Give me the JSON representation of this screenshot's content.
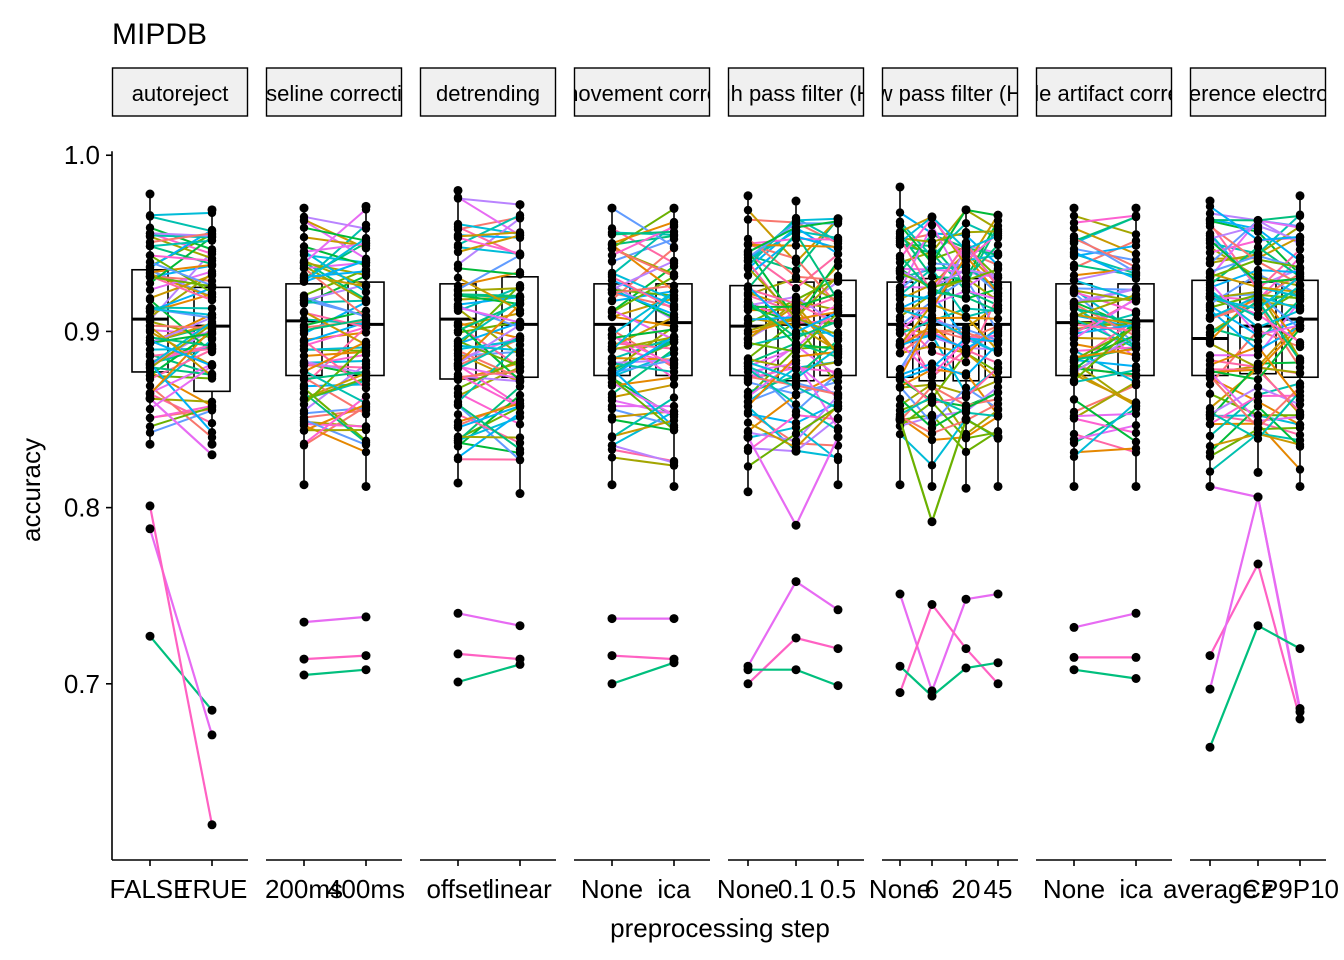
{
  "chart_data": {
    "type": "line",
    "title": "MIPDB",
    "xlabel": "preprocessing step",
    "ylabel": "accuracy",
    "ylim": [
      0.6,
      1.02
    ],
    "y_ticks": [
      0.7,
      0.8,
      0.9,
      1.0
    ],
    "y_tick_labels": [
      "0.7",
      "0.8",
      "0.9",
      "1.0"
    ],
    "grid": false,
    "legend": "none",
    "point_color": "#000000",
    "series_palette": [
      "#F8766D",
      "#E58700",
      "#C99800",
      "#A3A500",
      "#6BB100",
      "#00BA38",
      "#00BF7D",
      "#00C0AF",
      "#00BCD8",
      "#00B0F6",
      "#619CFF",
      "#B983FF",
      "#E76BF3",
      "#FD61D1",
      "#FF67A4"
    ],
    "panels": [
      {
        "strip_label": "autoreject",
        "categories": [
          "FALSE",
          "TRUE"
        ],
        "boxes": [
          {
            "q1": 0.877,
            "median": 0.907,
            "q3": 0.935,
            "whisker_low": 0.836,
            "whisker_high": 0.978
          },
          {
            "q1": 0.866,
            "median": 0.903,
            "q3": 0.925,
            "whisker_low": 0.836,
            "whisker_high": 0.969
          }
        ],
        "highlight_lines": [
          {
            "color": "#00BF7D",
            "values": [
              0.727,
              0.685
            ]
          },
          {
            "color": "#E76BF3",
            "values": [
              0.788,
              0.671
            ]
          },
          {
            "color": "#FF61C3",
            "values": [
              0.801,
              0.62
            ]
          },
          {
            "color": "#E76BF3",
            "values": [
              0.862,
              0.83
            ]
          }
        ]
      },
      {
        "strip_label": "baseline correction",
        "categories": [
          "200ms",
          "400ms"
        ],
        "boxes": [
          {
            "q1": 0.875,
            "median": 0.906,
            "q3": 0.927,
            "whisker_low": 0.813,
            "whisker_high": 0.97
          },
          {
            "q1": 0.875,
            "median": 0.904,
            "q3": 0.928,
            "whisker_low": 0.812,
            "whisker_high": 0.971
          }
        ],
        "highlight_lines": [
          {
            "color": "#E76BF3",
            "values": [
              0.735,
              0.738
            ]
          },
          {
            "color": "#FF61C3",
            "values": [
              0.714,
              0.716
            ]
          },
          {
            "color": "#00BF7D",
            "values": [
              0.705,
              0.708
            ]
          }
        ]
      },
      {
        "strip_label": "detrending",
        "categories": [
          "offset",
          "linear"
        ],
        "boxes": [
          {
            "q1": 0.873,
            "median": 0.907,
            "q3": 0.927,
            "whisker_low": 0.814,
            "whisker_high": 0.98
          },
          {
            "q1": 0.874,
            "median": 0.904,
            "q3": 0.931,
            "whisker_low": 0.808,
            "whisker_high": 0.972
          }
        ],
        "highlight_lines": [
          {
            "color": "#E76BF3",
            "values": [
              0.74,
              0.733
            ]
          },
          {
            "color": "#FF61C3",
            "values": [
              0.717,
              0.714
            ]
          },
          {
            "color": "#00BF7D",
            "values": [
              0.701,
              0.711
            ]
          }
        ]
      },
      {
        "strip_label": "eye movement correction",
        "categories": [
          "None",
          "ica"
        ],
        "boxes": [
          {
            "q1": 0.875,
            "median": 0.904,
            "q3": 0.927,
            "whisker_low": 0.813,
            "whisker_high": 0.97
          },
          {
            "q1": 0.875,
            "median": 0.905,
            "q3": 0.927,
            "whisker_low": 0.812,
            "whisker_high": 0.97
          }
        ],
        "highlight_lines": [
          {
            "color": "#E76BF3",
            "values": [
              0.737,
              0.737
            ]
          },
          {
            "color": "#FF61C3",
            "values": [
              0.716,
              0.714
            ]
          },
          {
            "color": "#00BF7D",
            "values": [
              0.7,
              0.712
            ]
          }
        ]
      },
      {
        "strip_label": "high pass filter (Hz)",
        "categories": [
          "None",
          "0.1",
          "0.5"
        ],
        "boxes": [
          {
            "q1": 0.875,
            "median": 0.903,
            "q3": 0.926,
            "whisker_low": 0.809,
            "whisker_high": 0.977
          },
          {
            "q1": 0.872,
            "median": 0.904,
            "q3": 0.928,
            "whisker_low": 0.832,
            "whisker_high": 0.974
          },
          {
            "q1": 0.875,
            "median": 0.909,
            "q3": 0.929,
            "whisker_low": 0.813,
            "whisker_high": 0.964
          }
        ],
        "highlight_lines": [
          {
            "color": "#E76BF3",
            "values": [
              0.71,
              0.758,
              0.742
            ]
          },
          {
            "color": "#FF61C3",
            "values": [
              0.7,
              0.726,
              0.72
            ]
          },
          {
            "color": "#00BF7D",
            "values": [
              0.708,
              0.708,
              0.699
            ]
          },
          {
            "color": "#E76BF3",
            "values": [
              0.84,
              0.79,
              0.84
            ]
          }
        ]
      },
      {
        "strip_label": "low pass filter (Hz)",
        "categories": [
          "None",
          "6",
          "20",
          "45"
        ],
        "boxes": [
          {
            "q1": 0.874,
            "median": 0.904,
            "q3": 0.928,
            "whisker_low": 0.813,
            "whisker_high": 0.982
          },
          {
            "q1": 0.872,
            "median": 0.904,
            "q3": 0.93,
            "whisker_low": 0.812,
            "whisker_high": 0.965
          },
          {
            "q1": 0.872,
            "median": 0.904,
            "q3": 0.93,
            "whisker_low": 0.811,
            "whisker_high": 0.969
          },
          {
            "q1": 0.874,
            "median": 0.904,
            "q3": 0.928,
            "whisker_low": 0.812,
            "whisker_high": 0.966
          }
        ],
        "highlight_lines": [
          {
            "color": "#E76BF3",
            "values": [
              0.751,
              0.696,
              0.748,
              0.751
            ]
          },
          {
            "color": "#FF61C3",
            "values": [
              0.695,
              0.745,
              0.72,
              0.7
            ]
          },
          {
            "color": "#00BF7D",
            "values": [
              0.71,
              0.693,
              0.709,
              0.712
            ]
          },
          {
            "color": "#6BB100",
            "values": [
              0.85,
              0.792,
              0.85,
              0.84
            ]
          }
        ]
      },
      {
        "strip_label": "muscle artifact correction",
        "categories": [
          "None",
          "ica"
        ],
        "boxes": [
          {
            "q1": 0.875,
            "median": 0.905,
            "q3": 0.927,
            "whisker_low": 0.812,
            "whisker_high": 0.97
          },
          {
            "q1": 0.875,
            "median": 0.906,
            "q3": 0.927,
            "whisker_low": 0.812,
            "whisker_high": 0.97
          }
        ],
        "highlight_lines": [
          {
            "color": "#E76BF3",
            "values": [
              0.732,
              0.74
            ]
          },
          {
            "color": "#FF61C3",
            "values": [
              0.715,
              0.715
            ]
          },
          {
            "color": "#00BF7D",
            "values": [
              0.708,
              0.703
            ]
          }
        ]
      },
      {
        "strip_label": "reference electrode",
        "categories": [
          "average",
          "Cz",
          "P9P10"
        ],
        "boxes": [
          {
            "q1": 0.875,
            "median": 0.896,
            "q3": 0.929,
            "whisker_low": 0.812,
            "whisker_high": 0.974
          },
          {
            "q1": 0.876,
            "median": 0.903,
            "q3": 0.928,
            "whisker_low": 0.82,
            "whisker_high": 0.963
          },
          {
            "q1": 0.874,
            "median": 0.907,
            "q3": 0.929,
            "whisker_low": 0.812,
            "whisker_high": 0.977
          }
        ],
        "highlight_lines": [
          {
            "color": "#E76BF3",
            "values": [
              0.812,
              0.806,
              0.686
            ]
          },
          {
            "color": "#FF61C3",
            "values": [
              0.716,
              0.768,
              0.68
            ]
          },
          {
            "color": "#E76BF3",
            "values": [
              0.697,
              0.806,
              0.684
            ]
          },
          {
            "color": "#00BF7D",
            "values": [
              0.664,
              0.733,
              0.72
            ]
          }
        ]
      }
    ]
  }
}
